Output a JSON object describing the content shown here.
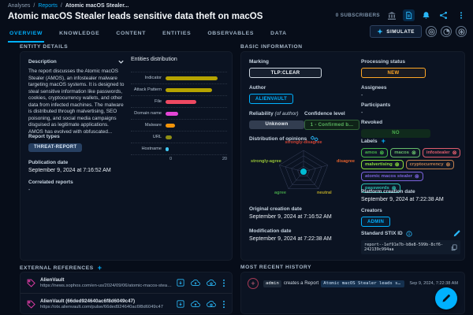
{
  "header": {
    "breadcrumb": [
      "Analyses",
      "Reports",
      "Atomic macOS Stealer..."
    ],
    "title": "Atomic macOS Stealer leads sensitive data theft on macOS",
    "subscribers": "0 SUBSCRIBERS",
    "simulate_label": "SIMULATE",
    "tabs": [
      "OVERVIEW",
      "KNOWLEDGE",
      "CONTENT",
      "ENTITIES",
      "OBSERVABLES",
      "DATA"
    ],
    "active_tab": "OVERVIEW"
  },
  "entity_panel": {
    "section_title": "ENTITY DETAILS",
    "description_label": "Description",
    "description": "The report discusses the Atomic macOS Stealer (AMOS), an infostealer malware targeting macOS systems. It is designed to steal sensitive information like passwords, cookies, cryptocurrency wallets, and other data from infected machines. The malware is distributed through malvertising, SEO poisoning, and social media campaigns disguised as legitimate applications. AMOS has evolved with obfuscated...",
    "report_types_label": "Report types",
    "report_type": "THREAT-REPORT",
    "publication_date_label": "Publication date",
    "publication_date": "September 9, 2024 at 7:16:52 AM",
    "correlated_label": "Correlated reports",
    "correlated_value": "-",
    "chart_data": {
      "type": "bar",
      "orientation": "horizontal",
      "title": "Entities distribution",
      "categories": [
        "Indicator",
        "Attack Pattern",
        "File",
        "Domain name",
        "Malware",
        "URL",
        "Hostname"
      ],
      "values": [
        17,
        15,
        10,
        4,
        3,
        2,
        1
      ],
      "colors": [
        "#b5a300",
        "#b5a300",
        "#ee4961",
        "#e445d6",
        "#f2940a",
        "#8e8e15",
        "#41c8f4"
      ],
      "xlim": [
        0,
        20
      ],
      "x_ticks": [
        "0",
        "20"
      ],
      "grid": "dotted-rows"
    }
  },
  "basic_info": {
    "section_title": "BASIC INFORMATION",
    "marking_label": "Marking",
    "marking": "TLP:CLEAR",
    "author_label": "Author",
    "author": "ALIENVAULT",
    "reliability_label": "Reliability",
    "reliability_label_suffix": "(of author)",
    "reliability": "Unknown",
    "confidence_label": "Confidence level",
    "confidence": "1 - Confirmed b...",
    "opinions_label": "Distribution of opinions",
    "opinions": [
      {
        "text": "strongly-disagree",
        "color": "#cf4436"
      },
      {
        "text": "disagree",
        "color": "#e2602c"
      },
      {
        "text": "neutral",
        "color": "#b8a525"
      },
      {
        "text": "agree",
        "color": "#43a047"
      },
      {
        "text": "strongly-agree",
        "color": "#95c136"
      }
    ],
    "original_date_label": "Original creation date",
    "original_date": "September 9, 2024 at 7:16:52 AM",
    "modification_date_label": "Modification date",
    "modification_date": "September 9, 2024 at 7:22:38 AM",
    "processing_label": "Processing status",
    "processing_status": "NEW",
    "assignees_label": "Assignees",
    "assignees": "-",
    "participants_label": "Participants",
    "participants": "-",
    "revoked_label": "Revoked",
    "revoked": "NO",
    "labels_label": "Labels",
    "labels": [
      {
        "text": "amos",
        "color": "#45b549"
      },
      {
        "text": "macos",
        "color": "#66bb6a"
      },
      {
        "text": "infostealer",
        "color": "#df5c6c"
      },
      {
        "text": "malvertising",
        "color": "#8ade3c"
      },
      {
        "text": "cryptocurrency",
        "color": "#c07f4e"
      },
      {
        "text": "atomic macos stealer",
        "color": "#7a62dd"
      },
      {
        "text": "passwords",
        "color": "#2bbcaf"
      }
    ],
    "platform_date_label": "Platform creation date",
    "platform_date": "September 9, 2024 at 7:22:38 AM",
    "creators_label": "Creators",
    "creator": "ADMIN",
    "stix_label": "Standard STIX ID",
    "stix_id": "report--1ef91e7b-b8e8-599b-8cf6-242139c994aa"
  },
  "external_references": {
    "section_title": "EXTERNAL REFERENCES",
    "items": [
      {
        "name": "AlienVault",
        "url": "https://news.sophos.com/en-us/2024/09/06/atomic-macos-stealer-leads-se..."
      },
      {
        "name": "AlienVault (66ded924640ac6f8d6049c47)",
        "url": "https://otx.alienvault.com/pulse/66ded924640ac6f8d6049c47"
      }
    ]
  },
  "history": {
    "section_title": "MOST RECENT HISTORY",
    "user": "admin",
    "action": "creates a Report",
    "target": "Atomic macOS Stealer leads sensitive ...",
    "timestamp": "Sep 9, 2024, 7:22:38 AM"
  },
  "colors": {
    "accent": "#00b1ff",
    "background": "#070d19",
    "panel": "#0b1322",
    "status_new": "#ffa726",
    "revoked_no": "#4caf50",
    "radar_dot": "#00bcd4",
    "reference_tag": "#d63ba0"
  }
}
